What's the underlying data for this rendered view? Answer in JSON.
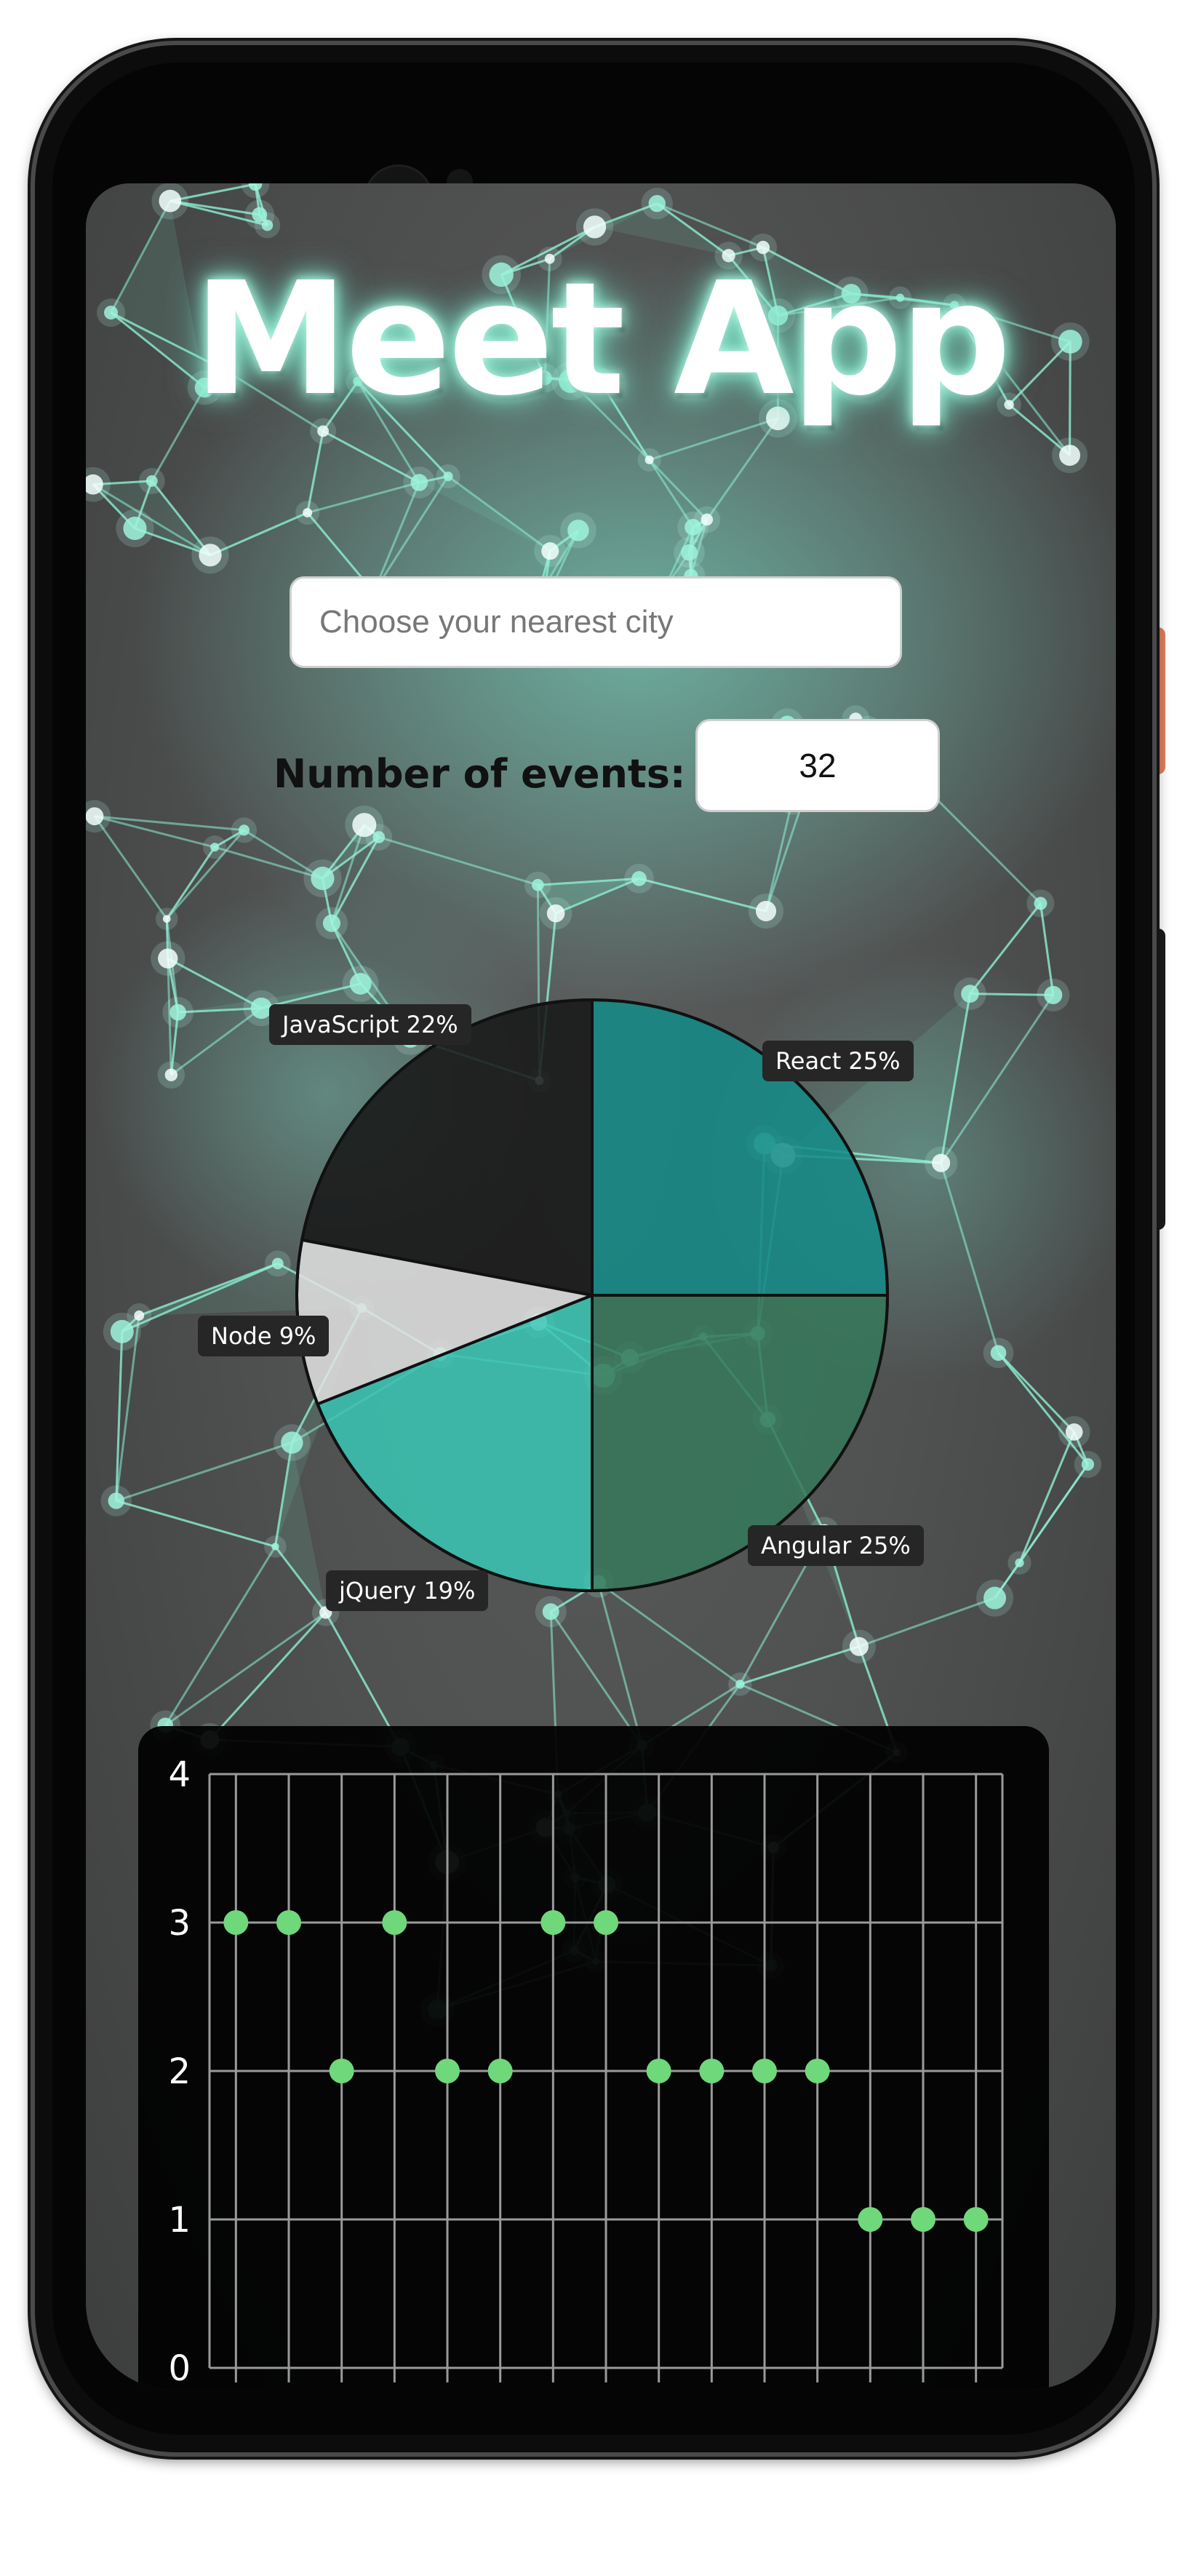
{
  "app": {
    "title": "Meet App"
  },
  "city_search": {
    "placeholder": "Choose your nearest city",
    "value": ""
  },
  "number_of_events": {
    "label": "Number of events:",
    "value": "32"
  },
  "chart_data": [
    {
      "type": "pie",
      "slices": [
        {
          "name": "React",
          "value": 25,
          "label": "React 25%",
          "color": "#148a87"
        },
        {
          "name": "Angular",
          "value": 25,
          "label": "Angular 25%",
          "color": "#36785a"
        },
        {
          "name": "jQuery",
          "value": 19,
          "label": "jQuery 19%",
          "color": "#3ac6b5"
        },
        {
          "name": "Node",
          "value": 9,
          "label": "Node 9%",
          "color": "#e2e2e2"
        },
        {
          "name": "JavaScript",
          "value": 22,
          "label": "JavaScript 22%",
          "color": "#161616"
        }
      ],
      "start_angle": "top, clockwise"
    },
    {
      "type": "scatter",
      "x": [
        1,
        2,
        3,
        4,
        5,
        6,
        7,
        8,
        9,
        10,
        11,
        12,
        13,
        14,
        15
      ],
      "y": [
        3,
        3,
        2,
        3,
        2,
        2,
        3,
        3,
        2,
        2,
        2,
        2,
        1,
        1,
        1
      ],
      "yticks": [
        "0",
        "1",
        "2",
        "3",
        "4"
      ],
      "ylim": [
        0,
        4
      ],
      "grid": true,
      "point_color": "#6fd87a"
    }
  ]
}
